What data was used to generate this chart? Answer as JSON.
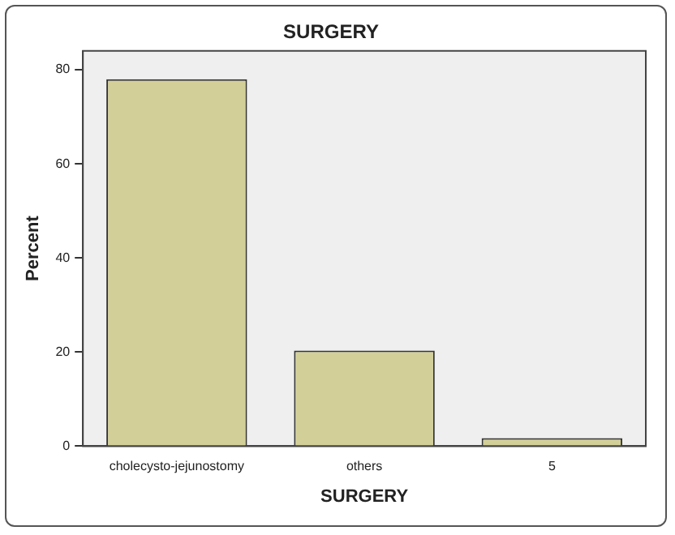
{
  "chart_data": {
    "type": "bar",
    "title": "SURGERY",
    "xlabel": "SURGERY",
    "ylabel": "Percent",
    "categories": [
      "cholecysto-jejunostomy",
      "others",
      "5"
    ],
    "values": [
      78,
      20.3,
      1.7
    ],
    "color": "#d3cf98",
    "ylim": [
      0,
      84
    ],
    "yticks": [
      0,
      20,
      40,
      60,
      80
    ],
    "grid": false,
    "legend": false
  }
}
